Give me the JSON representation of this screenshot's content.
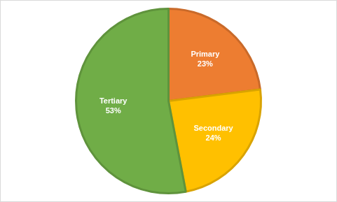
{
  "chart_data": {
    "type": "pie",
    "categories": [
      "Primary",
      "Secondary",
      "Tertiary"
    ],
    "values": [
      23,
      24,
      53
    ],
    "value_labels": [
      "23%",
      "24%",
      "53%"
    ],
    "colors": [
      "#ed7d31",
      "#ffc000",
      "#70ad47"
    ],
    "data_labels": true
  }
}
